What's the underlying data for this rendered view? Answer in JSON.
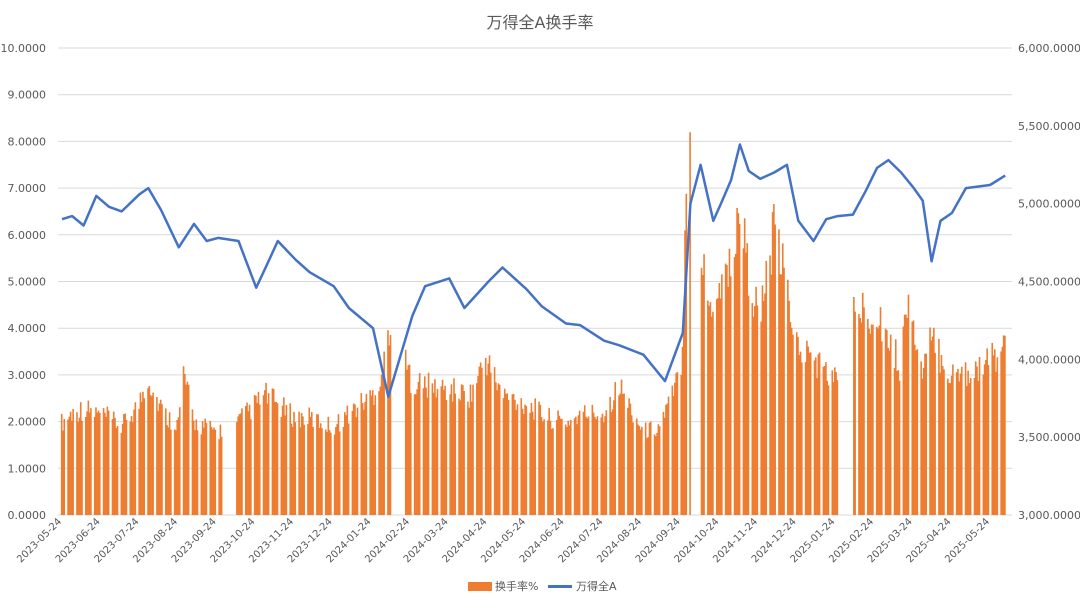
{
  "chart_data": {
    "type": "bar+line",
    "title": "万得全A换手率",
    "x_labels": [
      "2023-05-24",
      "2023-06-24",
      "2023-07-24",
      "2023-08-24",
      "2023-09-24",
      "2023-10-24",
      "2023-11-24",
      "2023-12-24",
      "2024-01-24",
      "2024-02-24",
      "2024-03-24",
      "2024-04-24",
      "2024-05-24",
      "2024-06-24",
      "2024-07-24",
      "2024-08-24",
      "2024-09-24",
      "2024-10-24",
      "2024-11-24",
      "2024-12-24",
      "2025-01-24",
      "2025-02-24",
      "2025-03-24",
      "2025-04-24",
      "2025-05-24"
    ],
    "y_left": {
      "min": 0,
      "max": 10,
      "ticks": [
        "0.0000",
        "1.0000",
        "2.0000",
        "3.0000",
        "4.0000",
        "5.0000",
        "6.0000",
        "7.0000",
        "8.0000",
        "9.0000",
        "10.0000"
      ]
    },
    "y_right": {
      "min": 3000,
      "max": 6000,
      "ticks": [
        "3,000.0000",
        "3,500.0000",
        "4,000.0000",
        "4,500.0000",
        "5,000.0000",
        "5,500.0000",
        "6,000.0000"
      ]
    },
    "gridlines": true,
    "legend_position": "bottom",
    "series": [
      {
        "name": "换手率%",
        "kind": "bar",
        "axis": "left",
        "color": "#ED7D31",
        "points": [
          [
            "2023-05-24",
            2.0
          ],
          [
            "2023-06-01",
            2.2
          ],
          [
            "2023-06-10",
            2.3
          ],
          [
            "2023-06-20",
            2.2
          ],
          [
            "2023-06-30",
            2.1
          ],
          [
            "2023-07-10",
            1.9
          ],
          [
            "2023-07-24",
            2.4
          ],
          [
            "2023-07-31",
            3.0
          ],
          [
            "2023-08-05",
            2.6
          ],
          [
            "2023-08-15",
            2.1
          ],
          [
            "2023-08-24",
            2.0
          ],
          [
            "2023-08-28",
            3.1
          ],
          [
            "2023-09-05",
            2.0
          ],
          [
            "2023-09-15",
            1.9
          ],
          [
            "2023-09-24",
            1.8
          ],
          [
            "2023-10-09",
            2.0
          ],
          [
            "2023-10-24",
            2.4
          ],
          [
            "2023-11-01",
            2.6
          ],
          [
            "2023-11-10",
            2.4
          ],
          [
            "2023-11-24",
            2.1
          ],
          [
            "2023-12-05",
            2.1
          ],
          [
            "2023-12-15",
            2.0
          ],
          [
            "2023-12-24",
            1.9
          ],
          [
            "2024-01-05",
            2.2
          ],
          [
            "2024-01-24",
            2.6
          ],
          [
            "2024-02-01",
            3.1
          ],
          [
            "2024-02-06",
            4.1
          ],
          [
            "2024-02-24",
            2.9
          ],
          [
            "2024-03-05",
            2.8
          ],
          [
            "2024-03-24",
            2.7
          ],
          [
            "2024-04-10",
            2.6
          ],
          [
            "2024-04-22",
            3.4
          ],
          [
            "2024-05-05",
            2.6
          ],
          [
            "2024-05-24",
            2.4
          ],
          [
            "2024-06-10",
            2.1
          ],
          [
            "2024-06-24",
            2.0
          ],
          [
            "2024-07-10",
            2.2
          ],
          [
            "2024-07-24",
            2.2
          ],
          [
            "2024-08-05",
            2.8
          ],
          [
            "2024-08-24",
            1.8
          ],
          [
            "2024-09-05",
            1.9
          ],
          [
            "2024-09-18",
            2.7
          ],
          [
            "2024-09-24",
            3.5
          ],
          [
            "2024-09-27",
            7.6
          ],
          [
            "2024-09-30",
            9.0
          ],
          [
            "2024-10-08",
            5.8
          ],
          [
            "2024-10-15",
            4.5
          ],
          [
            "2024-10-24",
            5.0
          ],
          [
            "2024-11-05",
            5.8
          ],
          [
            "2024-11-08",
            6.9
          ],
          [
            "2024-11-15",
            5.2
          ],
          [
            "2024-11-24",
            4.2
          ],
          [
            "2024-12-05",
            6.1
          ],
          [
            "2024-12-10",
            5.6
          ],
          [
            "2024-12-24",
            3.6
          ],
          [
            "2025-01-05",
            3.4
          ],
          [
            "2025-01-15",
            3.1
          ],
          [
            "2025-01-24",
            2.9
          ],
          [
            "2025-02-05",
            4.6
          ],
          [
            "2025-02-15",
            4.3
          ],
          [
            "2025-02-24",
            4.5
          ],
          [
            "2025-03-05",
            3.8
          ],
          [
            "2025-03-15",
            3.2
          ],
          [
            "2025-03-20",
            4.7
          ],
          [
            "2025-04-01",
            3.0
          ],
          [
            "2025-04-08",
            3.8
          ],
          [
            "2025-04-24",
            3.0
          ],
          [
            "2025-05-05",
            3.1
          ],
          [
            "2025-05-24",
            3.3
          ],
          [
            "2025-06-05",
            3.7
          ]
        ]
      },
      {
        "name": "万得全A",
        "kind": "line",
        "axis": "right",
        "color": "#4472C4",
        "points": [
          [
            "2023-05-24",
            4900
          ],
          [
            "2023-06-01",
            4920
          ],
          [
            "2023-06-10",
            4860
          ],
          [
            "2023-06-20",
            5050
          ],
          [
            "2023-06-30",
            4980
          ],
          [
            "2023-07-10",
            4950
          ],
          [
            "2023-07-24",
            5060
          ],
          [
            "2023-07-31",
            5100
          ],
          [
            "2023-08-10",
            4960
          ],
          [
            "2023-08-24",
            4720
          ],
          [
            "2023-09-05",
            4870
          ],
          [
            "2023-09-15",
            4760
          ],
          [
            "2023-09-24",
            4780
          ],
          [
            "2023-10-10",
            4760
          ],
          [
            "2023-10-24",
            4460
          ],
          [
            "2023-11-01",
            4600
          ],
          [
            "2023-11-10",
            4760
          ],
          [
            "2023-11-24",
            4640
          ],
          [
            "2023-12-05",
            4560
          ],
          [
            "2023-12-24",
            4470
          ],
          [
            "2024-01-05",
            4330
          ],
          [
            "2024-01-24",
            4200
          ],
          [
            "2024-02-05",
            3760
          ],
          [
            "2024-02-24",
            4280
          ],
          [
            "2024-03-05",
            4470
          ],
          [
            "2024-03-24",
            4520
          ],
          [
            "2024-04-05",
            4330
          ],
          [
            "2024-04-24",
            4500
          ],
          [
            "2024-05-05",
            4590
          ],
          [
            "2024-05-24",
            4450
          ],
          [
            "2024-06-05",
            4340
          ],
          [
            "2024-06-24",
            4230
          ],
          [
            "2024-07-05",
            4220
          ],
          [
            "2024-07-24",
            4120
          ],
          [
            "2024-08-05",
            4090
          ],
          [
            "2024-08-24",
            4030
          ],
          [
            "2024-09-10",
            3860
          ],
          [
            "2024-09-24",
            4170
          ],
          [
            "2024-09-30",
            5000
          ],
          [
            "2024-10-08",
            5250
          ],
          [
            "2024-10-18",
            4890
          ],
          [
            "2024-10-24",
            5000
          ],
          [
            "2024-11-01",
            5150
          ],
          [
            "2024-11-08",
            5380
          ],
          [
            "2024-11-15",
            5210
          ],
          [
            "2024-11-24",
            5160
          ],
          [
            "2024-12-05",
            5200
          ],
          [
            "2024-12-15",
            5250
          ],
          [
            "2024-12-24",
            4890
          ],
          [
            "2025-01-05",
            4760
          ],
          [
            "2025-01-15",
            4900
          ],
          [
            "2025-01-24",
            4920
          ],
          [
            "2025-02-05",
            4930
          ],
          [
            "2025-02-15",
            5080
          ],
          [
            "2025-02-24",
            5230
          ],
          [
            "2025-03-05",
            5280
          ],
          [
            "2025-03-15",
            5200
          ],
          [
            "2025-03-25",
            5100
          ],
          [
            "2025-04-01",
            5020
          ],
          [
            "2025-04-08",
            4630
          ],
          [
            "2025-04-15",
            4890
          ],
          [
            "2025-04-24",
            4940
          ],
          [
            "2025-05-05",
            5100
          ],
          [
            "2025-05-24",
            5120
          ],
          [
            "2025-06-05",
            5180
          ]
        ]
      }
    ]
  }
}
